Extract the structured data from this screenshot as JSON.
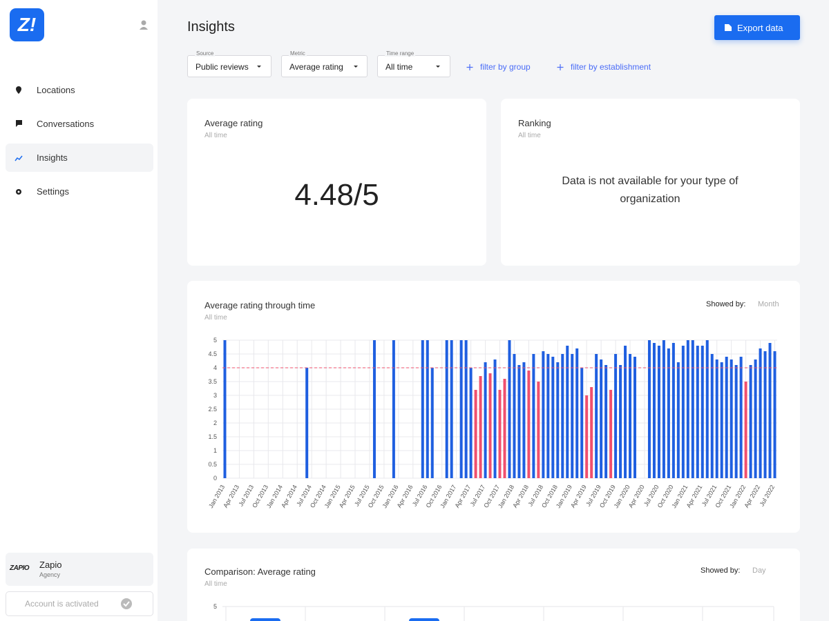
{
  "sidebar": {
    "logo": "Z!",
    "nav": [
      "Locations",
      "Conversations",
      "Insights",
      "Settings"
    ],
    "account": {
      "logo_text": "ZAPIO",
      "name": "Zapio",
      "role": "Agency",
      "status": "Account is activated"
    }
  },
  "header": {
    "title": "Insights",
    "export_button": "Export data"
  },
  "filters": {
    "dropdowns": [
      {
        "label": "Source",
        "value": "Public reviews"
      },
      {
        "label": "Metric",
        "value": "Average rating"
      },
      {
        "label": "Time range",
        "value": "All time"
      }
    ],
    "links": [
      "filter by group",
      "filter by establishment"
    ]
  },
  "cards": [
    {
      "title": "Average rating",
      "subtitle": "All time",
      "value": "4.48/5"
    },
    {
      "title": "Ranking",
      "subtitle": "All time",
      "message": "Data is not available for your type of organization"
    }
  ],
  "chart_data": {
    "type": "bar",
    "title": "Average rating through time",
    "subtitle": "All time",
    "showed_by_label": "Showed by:",
    "showed_by_value": "Month",
    "categories": [
      "Jan 2013",
      null,
      null,
      "Apr 2013",
      null,
      null,
      "Jul 2013",
      null,
      null,
      "Oct 2013",
      null,
      null,
      "Jan 2014",
      null,
      null,
      "Apr 2014",
      null,
      null,
      "Jul 2014",
      null,
      null,
      "Oct 2014",
      null,
      null,
      "Jan 2015",
      null,
      null,
      "Apr 2015",
      null,
      null,
      "Jul 2015",
      null,
      null,
      "Oct 2015",
      null,
      null,
      "Jan 2016",
      null,
      null,
      "Apr 2016",
      null,
      null,
      "Jul 2016",
      null,
      null,
      "Oct 2016",
      null,
      null,
      "Jan 2017",
      null,
      null,
      "Apr 2017",
      null,
      null,
      "Jul 2017",
      null,
      null,
      "Oct 2017",
      null,
      null,
      "Jan 2018",
      null,
      null,
      "Apr 2018",
      null,
      null,
      "Jul 2018",
      null,
      null,
      "Oct 2018",
      null,
      null,
      "Jan 2019",
      null,
      null,
      "Apr 2019",
      null,
      null,
      "Jul 2019",
      null,
      null,
      "Oct 2019",
      null,
      null,
      "Jan 2020",
      null,
      null,
      "Apr 2020",
      null,
      null,
      "Jul 2020",
      null,
      null,
      "Oct 2020",
      null,
      null,
      "Jan 2021",
      null,
      null,
      "Apr 2021",
      null,
      null,
      "Jul 2021",
      null,
      null,
      "Oct 2021",
      null,
      null,
      "Jan 2022",
      null,
      null,
      "Apr 2022",
      null,
      null,
      "Jul 2022"
    ],
    "values": [
      5,
      null,
      null,
      null,
      null,
      null,
      null,
      null,
      null,
      null,
      null,
      null,
      null,
      null,
      null,
      null,
      null,
      4,
      null,
      null,
      null,
      null,
      null,
      null,
      null,
      null,
      null,
      null,
      null,
      null,
      null,
      5,
      null,
      null,
      null,
      5,
      null,
      null,
      null,
      null,
      null,
      5,
      5,
      4,
      null,
      null,
      5,
      5,
      null,
      5,
      5,
      4,
      3.2,
      3.7,
      4.2,
      3.8,
      4.3,
      3.2,
      3.6,
      5,
      4.5,
      4.1,
      4.2,
      3.9,
      4.5,
      3.5,
      4.6,
      4.5,
      4.4,
      4.2,
      4.5,
      4.8,
      4.5,
      4.7,
      4,
      3,
      3.3,
      4.5,
      4.3,
      4.1,
      3.2,
      4.5,
      4.1,
      4.8,
      4.5,
      4.4,
      null,
      null,
      5,
      4.9,
      4.8,
      5,
      4.7,
      4.9,
      4.2,
      4.8,
      5,
      5,
      4.8,
      4.8,
      5,
      4.5,
      4.3,
      4.2,
      4.4,
      4.3,
      4.1,
      4.4,
      3.5,
      4.1,
      4.3,
      4.7,
      4.6,
      4.9,
      4.6
    ],
    "ylim": [
      0,
      5
    ],
    "yticks": [
      0,
      0.5,
      1,
      1.5,
      2,
      2.5,
      3,
      3.5,
      4,
      4.5,
      5
    ],
    "grid": true,
    "threshold": 4,
    "color": "#1f5fe0",
    "below_color": "#f0506e"
  },
  "comparison": {
    "title": "Comparison: Average rating",
    "subtitle": "All time",
    "showed_by_label": "Showed by:",
    "showed_by_value": "Day",
    "ylim": [
      0,
      5
    ],
    "yticks": [
      5
    ]
  }
}
